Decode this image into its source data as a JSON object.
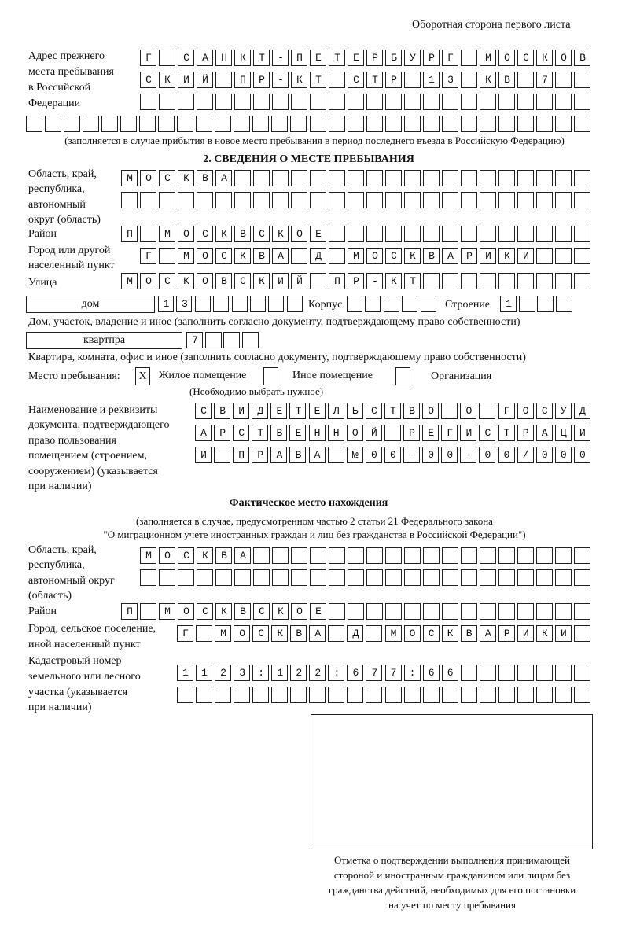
{
  "page_header": "Оборотная сторона первого листа",
  "prev_address": {
    "label": [
      "Адрес прежнего",
      "места пребывания",
      "в Российской",
      "Федерации"
    ],
    "rows": [
      "Г САНКТ-ПЕТЕРБУРГ МОСКОВ",
      "СКИЙ ПР-КТ СТР 13 КВ 7  ",
      "                        ",
      "                              "
    ],
    "note": "(заполняется в случае прибытия в новое место пребывания в период последнего въезда в Российскую Федерацию)"
  },
  "section2": {
    "title": "2. СВЕДЕНИЯ О МЕСТЕ ПРЕБЫВАНИЯ",
    "region_label": [
      "Область, край,",
      "республика,",
      "автономный",
      "округ (область)"
    ],
    "region_rows": [
      "МОСКВА                   ",
      "                         "
    ],
    "district_label": "Район",
    "district_row": "П МОСКВСКОЕ              ",
    "city_label": [
      "Город или другой",
      "населенный пункт"
    ],
    "city_row": "Г МОСКВА Д МОСКВАРИКИ   ",
    "street_label": "Улица",
    "street_row": "МОСКОВСКИЙ ПР-КТ         ",
    "house_type": "дом",
    "house_cells": "13      ",
    "korpus_label": "Корпус",
    "korpus_cells": "     ",
    "stroenie_label": "Строение",
    "stroenie_cells": "1   ",
    "house_note": "Дом, участок, владение и иное (заполнить согласно документу, подтверждающему право собственности)",
    "apt_type": "квартпра",
    "apt_cells": "7   ",
    "apt_note": "Квартира, комната, офис и иное (заполнить согласно документу, подтверждающему право собственности)",
    "place_label": "Место пребывания:",
    "place_options": [
      {
        "mark": "X",
        "label": "Жилое помещение",
        "checked": true
      },
      {
        "mark": "",
        "label": "Иное помещение",
        "checked": false
      },
      {
        "mark": "",
        "label": "Организация",
        "checked": false
      }
    ],
    "place_note": "(Необходимо выбрать нужное)",
    "doc_label": [
      "Наименование и реквизиты",
      "документа, подтверждающего",
      "право пользования",
      "помещением (строением,",
      "сооружением) (указывается",
      "при наличии)"
    ],
    "doc_rows": [
      "СВИДЕТЕЛЬСТВО О ГОСУД",
      "АРСТВЕННОЙ РЕГИСТРАЦИ",
      "И ПРАВА №00-00-00/000"
    ]
  },
  "actual": {
    "title": "Фактическое место нахождения",
    "note1": "(заполняется в случае, предусмотренном частью 2 статьи 21 Федерального закона",
    "note2": "\"О миграционном учете иностранных граждан и лиц без гражданства в Российской Федерации\")",
    "region_label": [
      "Область, край,",
      "республика,",
      "автономный округ",
      "(область)"
    ],
    "region_rows": [
      "МОСКВА                  ",
      "                        "
    ],
    "district_label": "Район",
    "district_row": "П МОСКВСКОЕ              ",
    "city_label": [
      "Город, сельское поселение,",
      "иной населенный пункт"
    ],
    "city_row": "Г МОСКВА Д МОСКВАРИКИ ",
    "cadastre_label": [
      "Кадастровый номер",
      "земельного или лесного",
      "участка (указывается",
      "при наличии)"
    ],
    "cadastre_rows": [
      "1123:122:677:66       ",
      "                      "
    ]
  },
  "stamp_caption": [
    "Отметка о подтверждении выполнения принимающей",
    "стороной и иностранным гражданином или лицом без",
    "гражданства действий, необходимых для его постановки",
    "на учет по месту пребывания"
  ]
}
